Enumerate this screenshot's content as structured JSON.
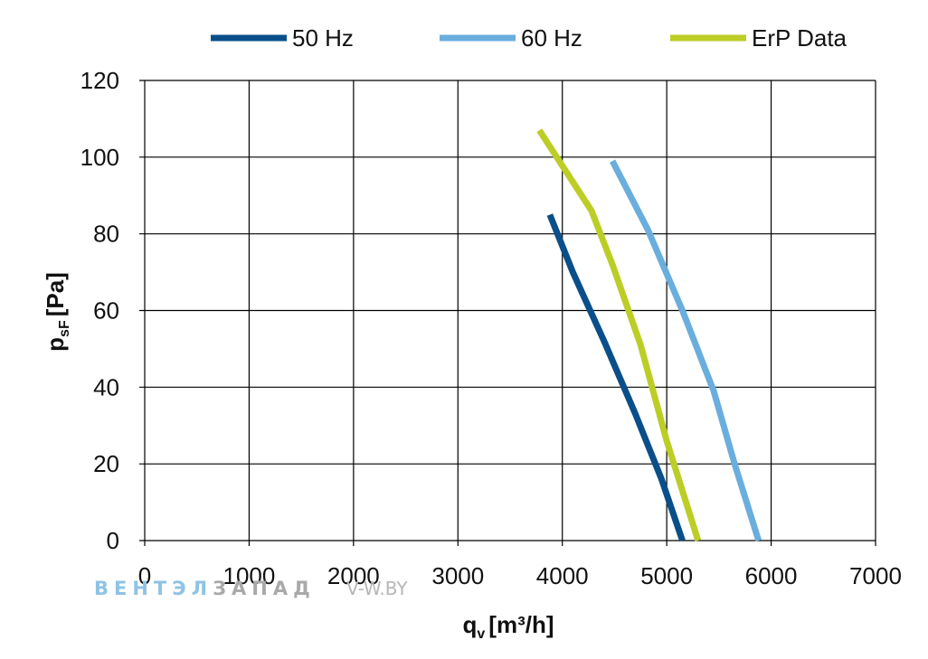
{
  "chart_data": {
    "type": "line",
    "xlabel": "q",
    "xlabel_sub": "v",
    "xlabel_unit": "[m³/h]",
    "ylabel": "p",
    "ylabel_sub": "sF",
    "ylabel_unit": "[Pa]",
    "xlim": [
      0,
      7000
    ],
    "ylim": [
      0,
      120
    ],
    "x_ticks": [
      0,
      1000,
      2000,
      3000,
      4000,
      5000,
      6000,
      7000
    ],
    "y_ticks": [
      0,
      20,
      40,
      60,
      80,
      100,
      120
    ],
    "grid": true,
    "legend_position": "top",
    "series": [
      {
        "name": "50 Hz",
        "color": "#0a4f8a",
        "points": [
          [
            3880,
            85
          ],
          [
            4100,
            70
          ],
          [
            4400,
            52
          ],
          [
            4700,
            33
          ],
          [
            4950,
            16
          ],
          [
            5150,
            0
          ]
        ]
      },
      {
        "name": "60 Hz",
        "color": "#6aaede",
        "points": [
          [
            4480,
            99
          ],
          [
            4820,
            81
          ],
          [
            5150,
            60
          ],
          [
            5450,
            39
          ],
          [
            5650,
            20
          ],
          [
            5880,
            0
          ]
        ]
      },
      {
        "name": "ErP Data",
        "color": "#bccd25",
        "points": [
          [
            3780,
            107
          ],
          [
            4280,
            86
          ],
          [
            4480,
            72
          ],
          [
            4750,
            51
          ],
          [
            5000,
            26
          ],
          [
            5300,
            0
          ]
        ]
      }
    ]
  },
  "watermark": {
    "part1": "ВЕНТЭЛ",
    "part2": "ЗАПАД",
    "url": "V-W.BY"
  }
}
